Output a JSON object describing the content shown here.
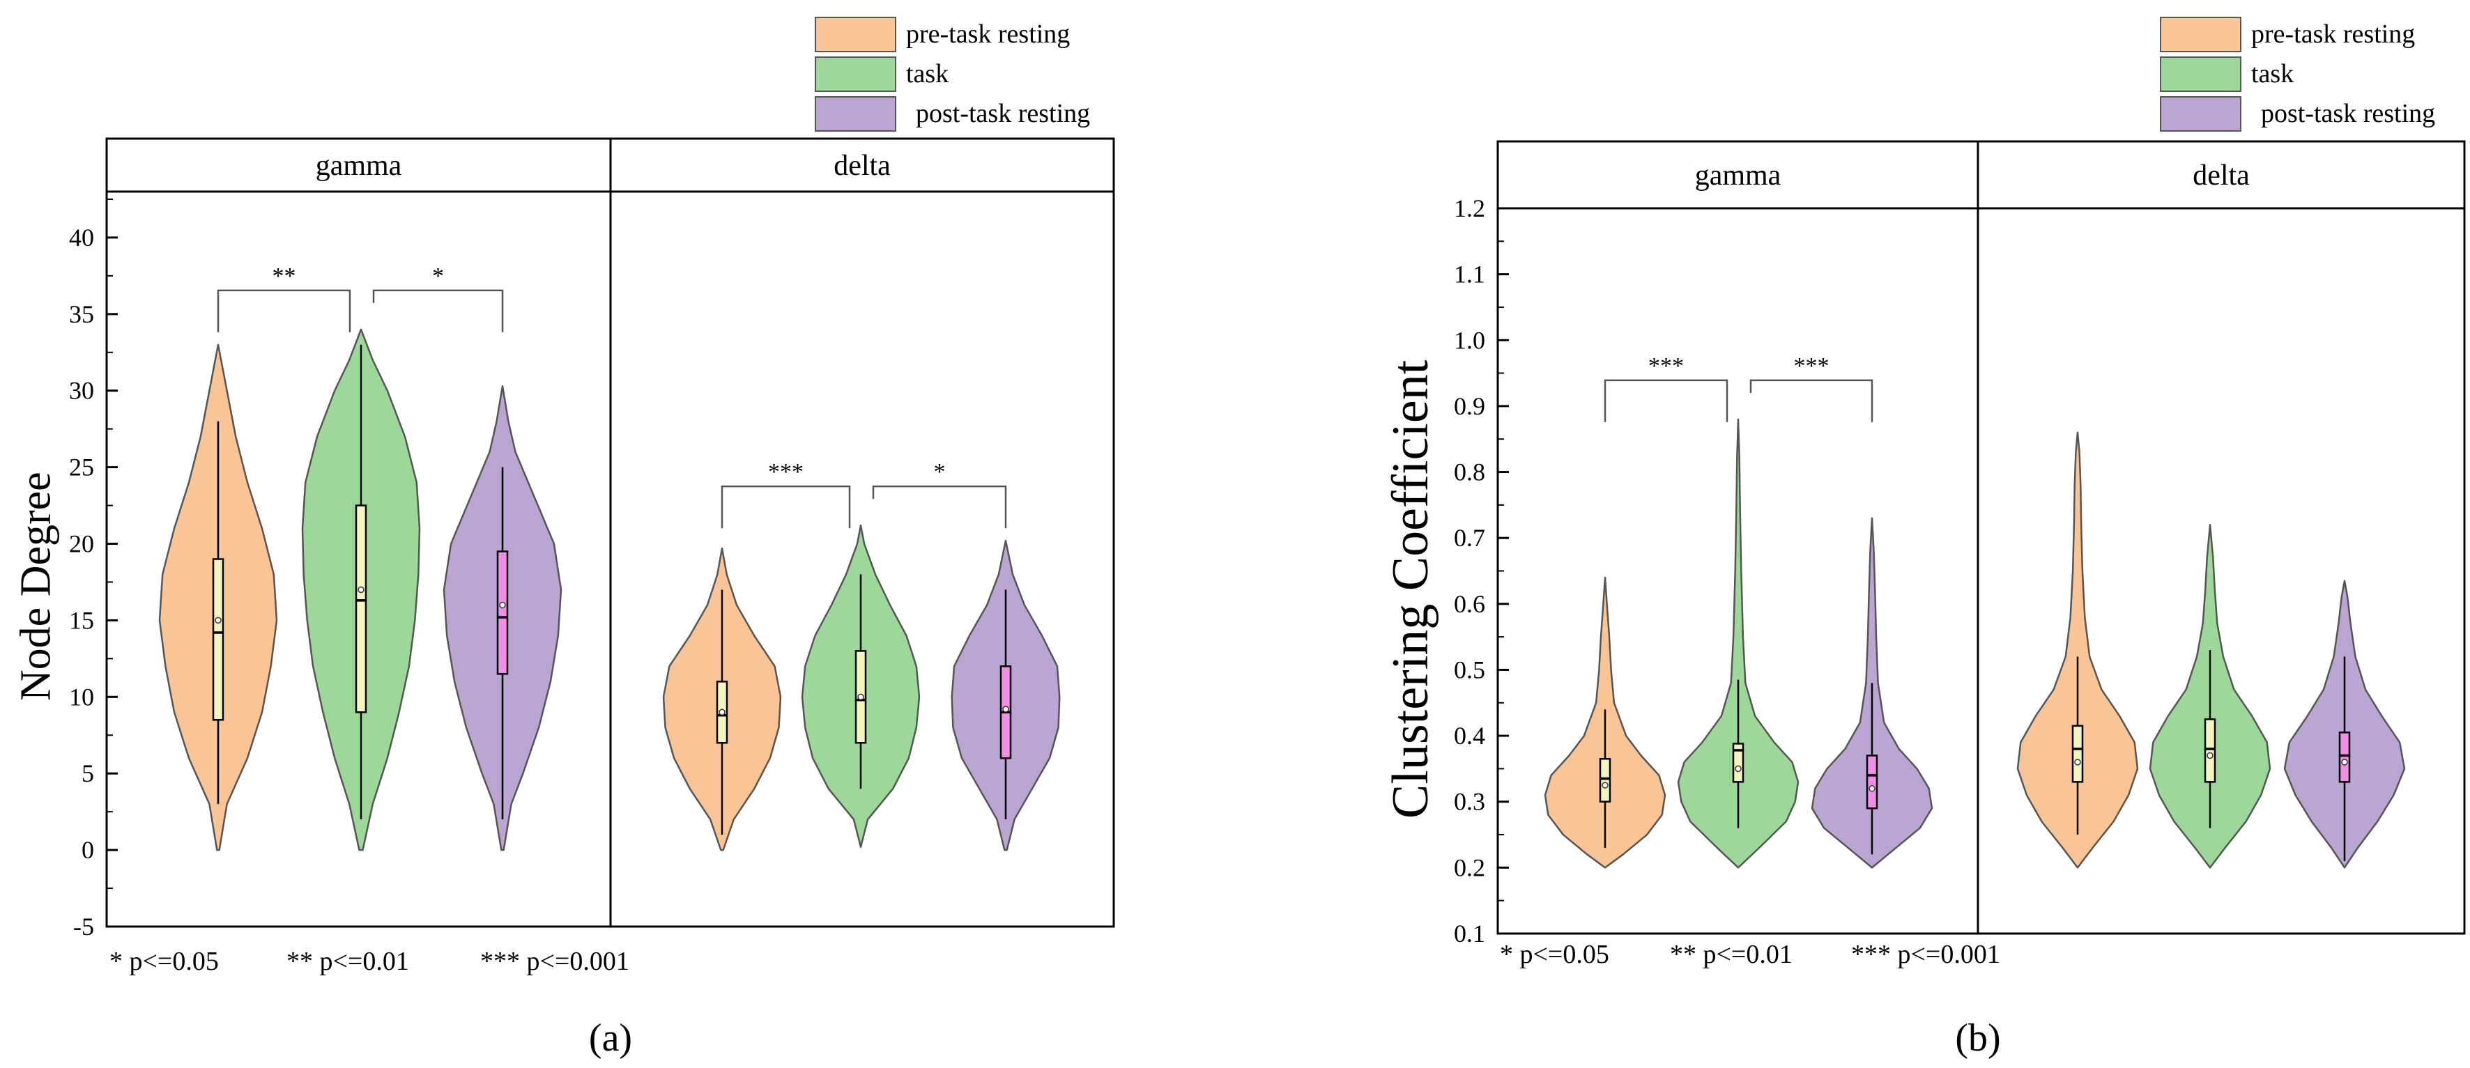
{
  "figure": {
    "notes": [
      "* p<=0.05",
      "** p<=0.01",
      "*** p<=0.001"
    ]
  },
  "colors": {
    "pre-task resting": "#fac596",
    "task": "#9dd89a",
    "post-task resting": "#bba5d3",
    "box_light": "#f4f4c0",
    "box_pink": "#ef8fe6",
    "outline": "#555555"
  },
  "chart_data": [
    {
      "type": "violin",
      "panel_label": "(a)",
      "ylabel": "Node Degree",
      "ylim": [
        -5,
        43
      ],
      "yticks": [
        -5,
        0,
        5,
        10,
        15,
        20,
        25,
        30,
        35,
        40
      ],
      "legend": [
        "pre-task resting",
        "task",
        "post-task resting"
      ],
      "facets": [
        {
          "name": "gamma",
          "groups": [
            {
              "name": "pre-task resting",
              "min": 0,
              "max": 33,
              "q1": 8.5,
              "median": 14.2,
              "q3": 19,
              "mean": 15,
              "whisker_low": 3,
              "whisker_high": 28,
              "box": "light",
              "density": [
                [
                  0,
                  0.02
                ],
                [
                  3,
                  0.15
                ],
                [
                  6,
                  0.5
                ],
                [
                  9,
                  0.75
                ],
                [
                  12,
                  0.9
                ],
                [
                  15,
                  1.0
                ],
                [
                  18,
                  0.95
                ],
                [
                  21,
                  0.75
                ],
                [
                  24,
                  0.5
                ],
                [
                  27,
                  0.3
                ],
                [
                  30,
                  0.15
                ],
                [
                  33,
                  0.0
                ]
              ]
            },
            {
              "name": "task",
              "min": 0,
              "max": 34,
              "q1": 9,
              "median": 16.3,
              "q3": 22.5,
              "mean": 17,
              "whisker_low": 2,
              "whisker_high": 33,
              "box": "light",
              "density": [
                [
                  0,
                  0.03
                ],
                [
                  3,
                  0.2
                ],
                [
                  6,
                  0.45
                ],
                [
                  9,
                  0.65
                ],
                [
                  12,
                  0.82
                ],
                [
                  15,
                  0.92
                ],
                [
                  18,
                  0.98
                ],
                [
                  21,
                  1.0
                ],
                [
                  24,
                  0.95
                ],
                [
                  27,
                  0.75
                ],
                [
                  30,
                  0.45
                ],
                [
                  32,
                  0.2
                ],
                [
                  34,
                  0.0
                ]
              ]
            },
            {
              "name": "post-task resting",
              "min": 0,
              "max": 30.3,
              "q1": 11.5,
              "median": 15.2,
              "q3": 19.5,
              "mean": 16,
              "whisker_low": 2,
              "whisker_high": 25,
              "box": "pink",
              "density": [
                [
                  0,
                  0.02
                ],
                [
                  3,
                  0.15
                ],
                [
                  5,
                  0.35
                ],
                [
                  8,
                  0.62
                ],
                [
                  11,
                  0.82
                ],
                [
                  14,
                  0.95
                ],
                [
                  17,
                  1.0
                ],
                [
                  20,
                  0.88
                ],
                [
                  23,
                  0.55
                ],
                [
                  26,
                  0.22
                ],
                [
                  28,
                  0.1
                ],
                [
                  30.3,
                  0.0
                ]
              ]
            }
          ],
          "brackets": [
            {
              "from": 0,
              "to": 1,
              "label": "**"
            },
            {
              "from": 1,
              "to": 2,
              "label": "*"
            }
          ]
        },
        {
          "name": "delta",
          "groups": [
            {
              "name": "pre-task resting",
              "min": 0,
              "max": 19.7,
              "q1": 7,
              "median": 8.8,
              "q3": 11,
              "mean": 9,
              "whisker_low": 1,
              "whisker_high": 17,
              "box": "light",
              "density": [
                [
                  0,
                  0.02
                ],
                [
                  2,
                  0.2
                ],
                [
                  4,
                  0.55
                ],
                [
                  6,
                  0.82
                ],
                [
                  8,
                  0.97
                ],
                [
                  10,
                  1.0
                ],
                [
                  12,
                  0.9
                ],
                [
                  14,
                  0.55
                ],
                [
                  16,
                  0.25
                ],
                [
                  18,
                  0.08
                ],
                [
                  19.7,
                  0.0
                ]
              ]
            },
            {
              "name": "task",
              "min": 0.2,
              "max": 21.2,
              "q1": 7,
              "median": 9.8,
              "q3": 13,
              "mean": 10,
              "whisker_low": 4,
              "whisker_high": 18,
              "box": "light",
              "density": [
                [
                  0.2,
                  0.0
                ],
                [
                  2,
                  0.12
                ],
                [
                  4,
                  0.55
                ],
                [
                  6,
                  0.82
                ],
                [
                  8,
                  0.95
                ],
                [
                  10,
                  1.0
                ],
                [
                  12,
                  0.95
                ],
                [
                  14,
                  0.78
                ],
                [
                  16,
                  0.5
                ],
                [
                  18,
                  0.25
                ],
                [
                  20,
                  0.06
                ],
                [
                  21.2,
                  0.0
                ]
              ]
            },
            {
              "name": "post-task resting",
              "min": 0,
              "max": 20.2,
              "q1": 6,
              "median": 9,
              "q3": 12,
              "mean": 9.2,
              "whisker_low": 2,
              "whisker_high": 17,
              "box": "pink",
              "density": [
                [
                  0,
                  0.02
                ],
                [
                  2,
                  0.15
                ],
                [
                  4,
                  0.45
                ],
                [
                  6,
                  0.75
                ],
                [
                  8,
                  0.9
                ],
                [
                  10,
                  0.92
                ],
                [
                  12,
                  0.88
                ],
                [
                  14,
                  0.62
                ],
                [
                  16,
                  0.32
                ],
                [
                  18,
                  0.12
                ],
                [
                  20.2,
                  0.0
                ]
              ]
            }
          ],
          "brackets": [
            {
              "from": 0,
              "to": 1,
              "label": "***"
            },
            {
              "from": 1,
              "to": 2,
              "label": "*"
            }
          ]
        }
      ]
    },
    {
      "type": "violin",
      "panel_label": "(b)",
      "ylabel": "Clustering Coefficient",
      "ylim": [
        0.1,
        1.2
      ],
      "yticks": [
        0.1,
        0.2,
        0.3,
        0.4,
        0.5,
        0.6,
        0.7,
        0.8,
        0.9,
        1.0,
        1.1,
        1.2
      ],
      "legend": [
        "pre-task resting",
        "task",
        "post-task resting"
      ],
      "facets": [
        {
          "name": "gamma",
          "groups": [
            {
              "name": "pre-task resting",
              "min": 0.2,
              "max": 0.64,
              "q1": 0.3,
              "median": 0.335,
              "q3": 0.365,
              "mean": 0.325,
              "whisker_low": 0.23,
              "whisker_high": 0.44,
              "box": "light",
              "density": [
                [
                  0.2,
                  0.0
                ],
                [
                  0.22,
                  0.3
                ],
                [
                  0.25,
                  0.7
                ],
                [
                  0.28,
                  0.95
                ],
                [
                  0.31,
                  1.0
                ],
                [
                  0.34,
                  0.9
                ],
                [
                  0.37,
                  0.6
                ],
                [
                  0.4,
                  0.35
                ],
                [
                  0.45,
                  0.15
                ],
                [
                  0.5,
                  0.1
                ],
                [
                  0.55,
                  0.07
                ],
                [
                  0.6,
                  0.03
                ],
                [
                  0.64,
                  0.0
                ]
              ]
            },
            {
              "name": "task",
              "min": 0.2,
              "max": 0.88,
              "q1": 0.33,
              "median": 0.378,
              "q3": 0.388,
              "mean": 0.35,
              "whisker_low": 0.26,
              "whisker_high": 0.485,
              "box": "light",
              "density": [
                [
                  0.2,
                  0.0
                ],
                [
                  0.23,
                  0.35
                ],
                [
                  0.27,
                  0.8
                ],
                [
                  0.3,
                  0.95
                ],
                [
                  0.33,
                  1.0
                ],
                [
                  0.36,
                  0.9
                ],
                [
                  0.39,
                  0.6
                ],
                [
                  0.43,
                  0.28
                ],
                [
                  0.48,
                  0.12
                ],
                [
                  0.55,
                  0.08
                ],
                [
                  0.65,
                  0.05
                ],
                [
                  0.75,
                  0.03
                ],
                [
                  0.82,
                  0.02
                ],
                [
                  0.88,
                  0.0
                ]
              ]
            },
            {
              "name": "post-task resting",
              "min": 0.2,
              "max": 0.73,
              "q1": 0.29,
              "median": 0.34,
              "q3": 0.37,
              "mean": 0.32,
              "whisker_low": 0.22,
              "whisker_high": 0.48,
              "box": "pink",
              "density": [
                [
                  0.2,
                  0.0
                ],
                [
                  0.23,
                  0.4
                ],
                [
                  0.26,
                  0.8
                ],
                [
                  0.29,
                  1.0
                ],
                [
                  0.32,
                  0.95
                ],
                [
                  0.35,
                  0.75
                ],
                [
                  0.38,
                  0.45
                ],
                [
                  0.42,
                  0.2
                ],
                [
                  0.48,
                  0.1
                ],
                [
                  0.55,
                  0.07
                ],
                [
                  0.62,
                  0.05
                ],
                [
                  0.68,
                  0.03
                ],
                [
                  0.73,
                  0.0
                ]
              ]
            }
          ],
          "brackets": [
            {
              "from": 0,
              "to": 1,
              "label": "***"
            },
            {
              "from": 1,
              "to": 2,
              "label": "***"
            }
          ]
        },
        {
          "name": "delta",
          "groups": [
            {
              "name": "pre-task resting",
              "min": 0.2,
              "max": 0.86,
              "q1": 0.33,
              "median": 0.38,
              "q3": 0.415,
              "mean": 0.36,
              "whisker_low": 0.25,
              "whisker_high": 0.52,
              "box": "light",
              "density": [
                [
                  0.2,
                  0.0
                ],
                [
                  0.23,
                  0.25
                ],
                [
                  0.27,
                  0.6
                ],
                [
                  0.31,
                  0.85
                ],
                [
                  0.35,
                  1.0
                ],
                [
                  0.39,
                  0.95
                ],
                [
                  0.43,
                  0.7
                ],
                [
                  0.47,
                  0.4
                ],
                [
                  0.52,
                  0.2
                ],
                [
                  0.58,
                  0.12
                ],
                [
                  0.65,
                  0.08
                ],
                [
                  0.72,
                  0.06
                ],
                [
                  0.78,
                  0.05
                ],
                [
                  0.83,
                  0.03
                ],
                [
                  0.86,
                  0.0
                ]
              ]
            },
            {
              "name": "task",
              "min": 0.2,
              "max": 0.72,
              "q1": 0.33,
              "median": 0.38,
              "q3": 0.425,
              "mean": 0.37,
              "whisker_low": 0.26,
              "whisker_high": 0.53,
              "box": "light",
              "density": [
                [
                  0.2,
                  0.0
                ],
                [
                  0.23,
                  0.25
                ],
                [
                  0.27,
                  0.6
                ],
                [
                  0.31,
                  0.85
                ],
                [
                  0.35,
                  1.0
                ],
                [
                  0.39,
                  0.95
                ],
                [
                  0.43,
                  0.7
                ],
                [
                  0.47,
                  0.4
                ],
                [
                  0.52,
                  0.22
                ],
                [
                  0.57,
                  0.12
                ],
                [
                  0.62,
                  0.08
                ],
                [
                  0.67,
                  0.05
                ],
                [
                  0.72,
                  0.0
                ]
              ]
            },
            {
              "name": "post-task resting",
              "min": 0.2,
              "max": 0.635,
              "q1": 0.33,
              "median": 0.37,
              "q3": 0.405,
              "mean": 0.36,
              "whisker_low": 0.21,
              "whisker_high": 0.52,
              "box": "pink",
              "density": [
                [
                  0.2,
                  0.0
                ],
                [
                  0.23,
                  0.22
                ],
                [
                  0.27,
                  0.55
                ],
                [
                  0.31,
                  0.82
                ],
                [
                  0.35,
                  1.0
                ],
                [
                  0.39,
                  0.92
                ],
                [
                  0.43,
                  0.62
                ],
                [
                  0.47,
                  0.35
                ],
                [
                  0.52,
                  0.18
                ],
                [
                  0.57,
                  0.1
                ],
                [
                  0.61,
                  0.05
                ],
                [
                  0.635,
                  0.0
                ]
              ]
            }
          ],
          "brackets": []
        }
      ]
    }
  ]
}
